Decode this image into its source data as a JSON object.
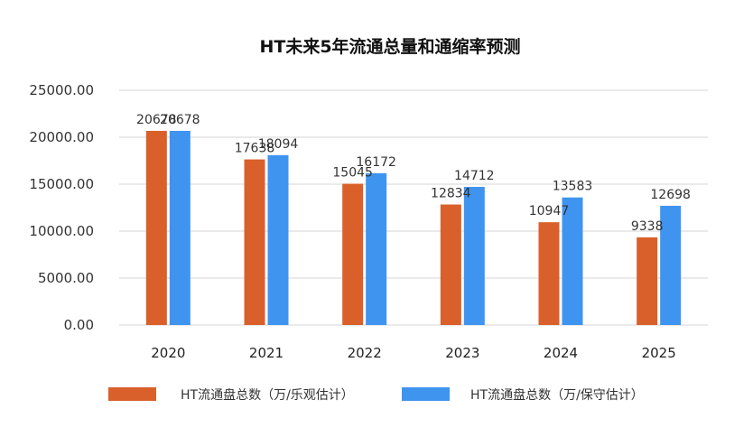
{
  "chart_data": {
    "type": "bar",
    "title": "HT未来5年流通总量和通缩率预测",
    "categories": [
      "2020",
      "2021",
      "2022",
      "2023",
      "2024",
      "2025"
    ],
    "series": [
      {
        "name": "HT流通盘总数（万/乐观估计）",
        "color": "#D9602A",
        "values": [
          20678,
          17638,
          15045,
          12834,
          10947,
          9338
        ]
      },
      {
        "name": "HT流通盘总数（万/保守估计）",
        "color": "#3F94EF",
        "values": [
          20678,
          18094,
          16172,
          14712,
          13583,
          12698
        ]
      }
    ],
    "ylim": [
      0,
      25000
    ],
    "yticks": [
      "0.00",
      "5000.00",
      "10000.00",
      "15000.00",
      "20000.00",
      "25000.00"
    ],
    "grid": true,
    "legend": "bottom"
  }
}
